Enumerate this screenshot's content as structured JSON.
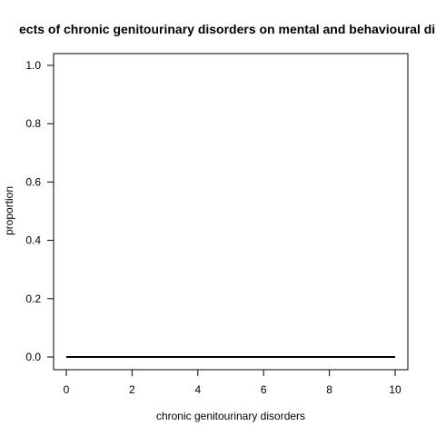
{
  "chart_data": {
    "type": "line",
    "title": "ects of chronic genitourinary disorders on mental and behavioural dis",
    "xlabel": "chronic genitourinary disorders",
    "ylabel": "proportion",
    "xlim": [
      0,
      10
    ],
    "ylim": [
      0,
      1.0
    ],
    "x_ticks": [
      0,
      2,
      4,
      6,
      8,
      10
    ],
    "x_tick_labels": [
      "0",
      "2",
      "4",
      "6",
      "8",
      "10"
    ],
    "y_ticks": [
      0,
      0.2,
      0.4,
      0.6,
      0.8,
      1.0
    ],
    "y_tick_labels": [
      "0.0",
      "0.2",
      "0.4",
      "0.6",
      "0.8",
      "1.0"
    ],
    "grid": false,
    "series": [
      {
        "x": [
          0,
          10
        ],
        "y": [
          0.0,
          0.0
        ]
      }
    ]
  },
  "colors": {
    "line": "#000000",
    "axis": "#000000",
    "background": "#ffffff"
  }
}
